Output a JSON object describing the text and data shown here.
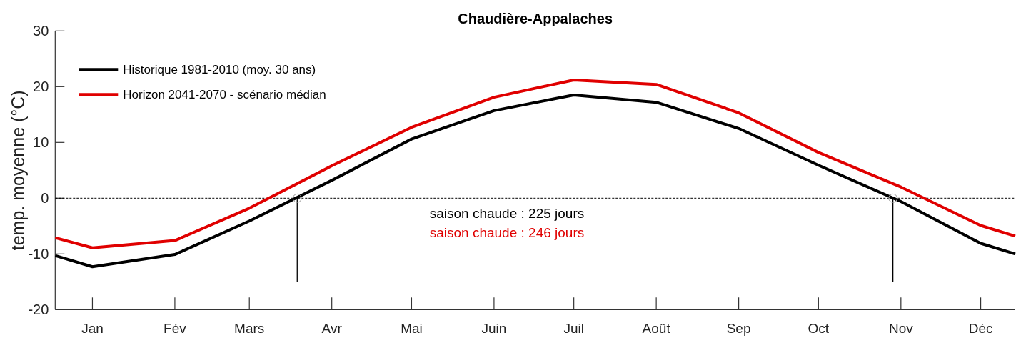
{
  "chart_data": {
    "type": "line",
    "title": "Chaudière-Appalaches",
    "ylabel": "temp. moyenne (°C)",
    "x": [
      "--01-01",
      "--01-15",
      "--02-15",
      "--03-15",
      "--04-15",
      "--05-15",
      "--06-15",
      "--07-15",
      "--08-15",
      "--09-15",
      "--10-15",
      "--11-15",
      "--12-15",
      "--12-28"
    ],
    "series": [
      {
        "name": "Historique 1981-2010 (moy. 30 ans)",
        "color": "#000000",
        "values": [
          -10.3,
          -12.3,
          -10.1,
          -4.1,
          3.2,
          10.6,
          15.7,
          18.5,
          17.2,
          12.5,
          5.9,
          -0.6,
          -8.1,
          -10.0
        ]
      },
      {
        "name": "Horizon 2041-2070 - scénario médian",
        "color": "#e00000",
        "values": [
          -7.1,
          -8.9,
          -7.6,
          -1.8,
          5.8,
          12.7,
          18.1,
          21.2,
          20.4,
          15.3,
          8.2,
          2.0,
          -4.9,
          -6.8
        ]
      },
      {
        "type": "line",
        "x": [
          "--04-02",
          "--04-02"
        ],
        "values": [
          0,
          -15
        ],
        "color": "#000000"
      },
      {
        "type": "line",
        "x": [
          "--11-12",
          "--11-12"
        ],
        "values": [
          0,
          -15
        ],
        "color": "#000000"
      },
      {
        "type": "scatter",
        "x": [
          "--04-02",
          "--11-12"
        ],
        "values": [
          0,
          0
        ],
        "color": "#999999",
        "marker": "circle"
      }
    ],
    "xlim": [
      "--01-01",
      "--12-28"
    ],
    "xticks": [
      {
        "value": "--01-15",
        "label": "Jan"
      },
      {
        "value": "--02-15",
        "label": "Fév"
      },
      {
        "value": "--03-15",
        "label": "Mars"
      },
      {
        "value": "--04-15",
        "label": "Avr"
      },
      {
        "value": "--05-15",
        "label": "Mai"
      },
      {
        "value": "--06-15",
        "label": "Juin"
      },
      {
        "value": "--07-15",
        "label": "Juil"
      },
      {
        "value": "--08-15",
        "label": "Août"
      },
      {
        "value": "--09-15",
        "label": "Sep"
      },
      {
        "value": "--10-15",
        "label": "Oct"
      },
      {
        "value": "--11-15",
        "label": "Nov"
      },
      {
        "value": "--12-15",
        "label": "Déc"
      }
    ],
    "ylim": [
      -20,
      30
    ],
    "yticks": [
      -20,
      -10,
      0,
      10,
      20,
      30
    ],
    "ref_lines": [
      {
        "axis": "y",
        "value": 0,
        "line_style": "dashed",
        "color": "#000000"
      }
    ],
    "annotations": [
      "saison chaude : 225 jours",
      "saison chaude : 246 jours"
    ],
    "legend": "top left"
  }
}
